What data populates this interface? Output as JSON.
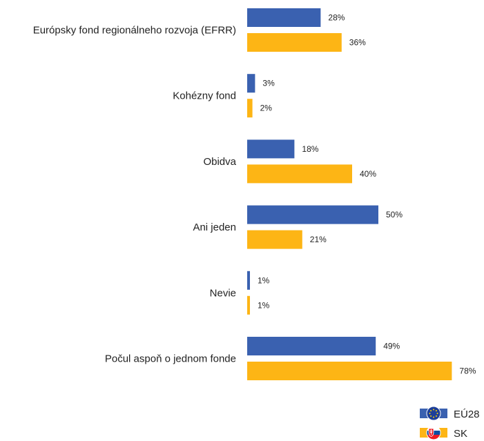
{
  "chart_data": {
    "type": "bar",
    "orientation": "horizontal",
    "categories": [
      "Európsky fond regionálneho rozvoja (EFRR)",
      "Kohézny fond",
      "Obidva",
      "Ani jeden",
      "Nevie",
      "Počul aspoň o jednom fonde"
    ],
    "series": [
      {
        "name": "EÚ28",
        "color": "#3a61b0",
        "values": [
          28,
          3,
          18,
          50,
          1,
          49
        ],
        "labels": [
          "28%",
          "3%",
          "18%",
          "50%",
          "1%",
          "49%"
        ]
      },
      {
        "name": "SK",
        "color": "#fdb515",
        "values": [
          36,
          2,
          40,
          21,
          1,
          78
        ],
        "labels": [
          "36%",
          "2%",
          "40%",
          "21%",
          "1%",
          "78%"
        ]
      }
    ],
    "xlim": [
      0,
      100
    ],
    "grid": false,
    "legend_position": "bottom-right",
    "title": "",
    "xlabel": "",
    "ylabel": ""
  }
}
